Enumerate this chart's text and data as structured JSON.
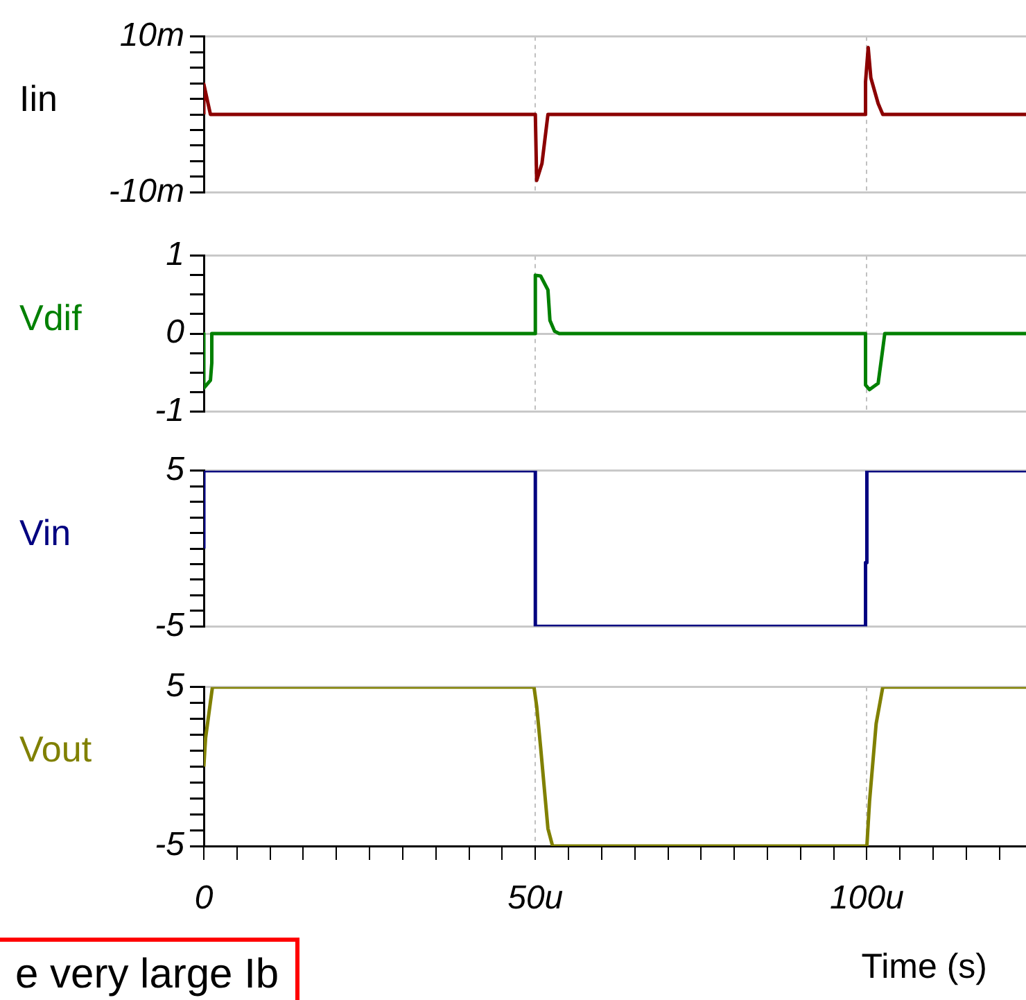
{
  "chart_data": [
    {
      "type": "line",
      "ylabel": "Iin",
      "grid": true,
      "tick_labels": "y",
      "xlim": [
        0,
        124
      ],
      "xticks": [
        50,
        100
      ],
      "ylim": [
        -10,
        10
      ],
      "yticks": [
        {
          "value": -10,
          "label": "-10m"
        },
        {
          "value": -8,
          "label": null
        },
        {
          "value": -6,
          "label": null
        },
        {
          "value": -4,
          "label": null
        },
        {
          "value": -2,
          "label": null
        },
        {
          "value": 0,
          "label": null
        },
        {
          "value": 2,
          "label": null
        },
        {
          "value": 4,
          "label": null
        },
        {
          "value": 6,
          "label": null
        },
        {
          "value": 8,
          "label": null
        },
        {
          "value": 10,
          "label": "10m"
        }
      ],
      "series": [
        {
          "color": "#8b0000",
          "x": [
            0,
            0,
            1.0,
            50.0,
            50.2,
            51.0,
            51.9,
            99.8,
            99.8,
            100.2,
            100.6,
            101.7,
            102.4,
            124
          ],
          "values": [
            0,
            3.9,
            0,
            0,
            -8.5,
            -6.3,
            0,
            0,
            4.2,
            8.6,
            4.7,
            1.4,
            0,
            0
          ]
        }
      ]
    },
    {
      "type": "line",
      "ylabel": "Vdif",
      "grid": true,
      "tick_labels": "y",
      "xlim": [
        0,
        124
      ],
      "xticks": [
        50,
        100
      ],
      "ylim": [
        -1,
        1
      ],
      "yticks": [
        -1,
        {
          "value": -0.75,
          "label": null
        },
        {
          "value": -0.5,
          "label": null
        },
        {
          "value": -0.25,
          "label": null
        },
        0,
        {
          "value": 0.25,
          "label": null
        },
        {
          "value": 0.5,
          "label": null
        },
        {
          "value": 0.75,
          "label": null
        },
        1
      ],
      "series": [
        {
          "color": "#008000",
          "x": [
            0,
            0,
            0.8,
            1.0,
            1.2,
            1.2,
            50.0,
            50.0,
            50.8,
            51.9,
            52.2,
            52.9,
            53.6,
            99.8,
            99.8,
            100.4,
            101.7,
            102.3,
            102.7,
            124
          ],
          "values": [
            0,
            -0.7,
            -0.62,
            -0.6,
            -0.38,
            0,
            0,
            0.75,
            0.74,
            0.56,
            0.17,
            0.03,
            0,
            0,
            -0.66,
            -0.72,
            -0.64,
            -0.26,
            0,
            0
          ]
        }
      ]
    },
    {
      "type": "line",
      "ylabel": "Vin",
      "grid": true,
      "tick_labels": "y",
      "xlim": [
        0,
        124
      ],
      "xticks": [
        50,
        100
      ],
      "ylim": [
        -5,
        5
      ],
      "yticks": [
        -5,
        {
          "value": -4,
          "label": null
        },
        {
          "value": -3,
          "label": null
        },
        {
          "value": -2,
          "label": null
        },
        {
          "value": -1,
          "label": null
        },
        {
          "value": 0,
          "label": null
        },
        {
          "value": 1,
          "label": null
        },
        {
          "value": 2,
          "label": null
        },
        {
          "value": 3,
          "label": null
        },
        {
          "value": 4,
          "label": null
        },
        5
      ],
      "series": [
        {
          "color": "#000080",
          "x": [
            0,
            0,
            50.0,
            50.0,
            99.8,
            99.8,
            100.0,
            100.0,
            124
          ],
          "values": [
            0,
            5,
            5,
            -5,
            -5,
            -0.9,
            -0.9,
            5,
            5
          ]
        }
      ]
    },
    {
      "type": "line",
      "ylabel": "Vout",
      "xlabel": "Time (s)",
      "grid": true,
      "annotations": [
        "e very large Ib"
      ],
      "xlim": [
        0,
        124
      ],
      "xticks": [
        0,
        {
          "value": 5,
          "label": null
        },
        {
          "value": 10,
          "label": null
        },
        {
          "value": 15,
          "label": null
        },
        {
          "value": 20,
          "label": null
        },
        {
          "value": 25,
          "label": null
        },
        {
          "value": 30,
          "label": null
        },
        {
          "value": 35,
          "label": null
        },
        {
          "value": 40,
          "label": null
        },
        {
          "value": 45,
          "label": null
        },
        {
          "value": 50,
          "label": "50u"
        },
        {
          "value": 55,
          "label": null
        },
        {
          "value": 60,
          "label": null
        },
        {
          "value": 65,
          "label": null
        },
        {
          "value": 70,
          "label": null
        },
        {
          "value": 75,
          "label": null
        },
        {
          "value": 80,
          "label": null
        },
        {
          "value": 85,
          "label": null
        },
        {
          "value": 90,
          "label": null
        },
        {
          "value": 95,
          "label": null
        },
        {
          "value": 100,
          "label": "100u"
        },
        {
          "value": 105,
          "label": null
        },
        {
          "value": 110,
          "label": null
        },
        {
          "value": 115,
          "label": null
        },
        {
          "value": 120,
          "label": null
        }
      ],
      "ylim": [
        -5,
        5
      ],
      "yticks": [
        -5,
        {
          "value": -4,
          "label": null
        },
        {
          "value": -3,
          "label": null
        },
        {
          "value": -2,
          "label": null
        },
        {
          "value": -1,
          "label": null
        },
        {
          "value": 0,
          "label": null
        },
        {
          "value": 1,
          "label": null
        },
        {
          "value": 2,
          "label": null
        },
        {
          "value": 3,
          "label": null
        },
        {
          "value": 4,
          "label": null
        },
        5
      ],
      "series": [
        {
          "color": "#808000",
          "x": [
            0,
            0.27,
            1.3,
            49.8,
            50.2,
            50.8,
            51.9,
            52.6,
            100.0,
            100.4,
            101.4,
            102.4,
            124
          ],
          "values": [
            0,
            1.8,
            5,
            5,
            3.8,
            1.2,
            -3.9,
            -5,
            -5,
            -2.2,
            2.7,
            5,
            5
          ]
        }
      ]
    }
  ]
}
